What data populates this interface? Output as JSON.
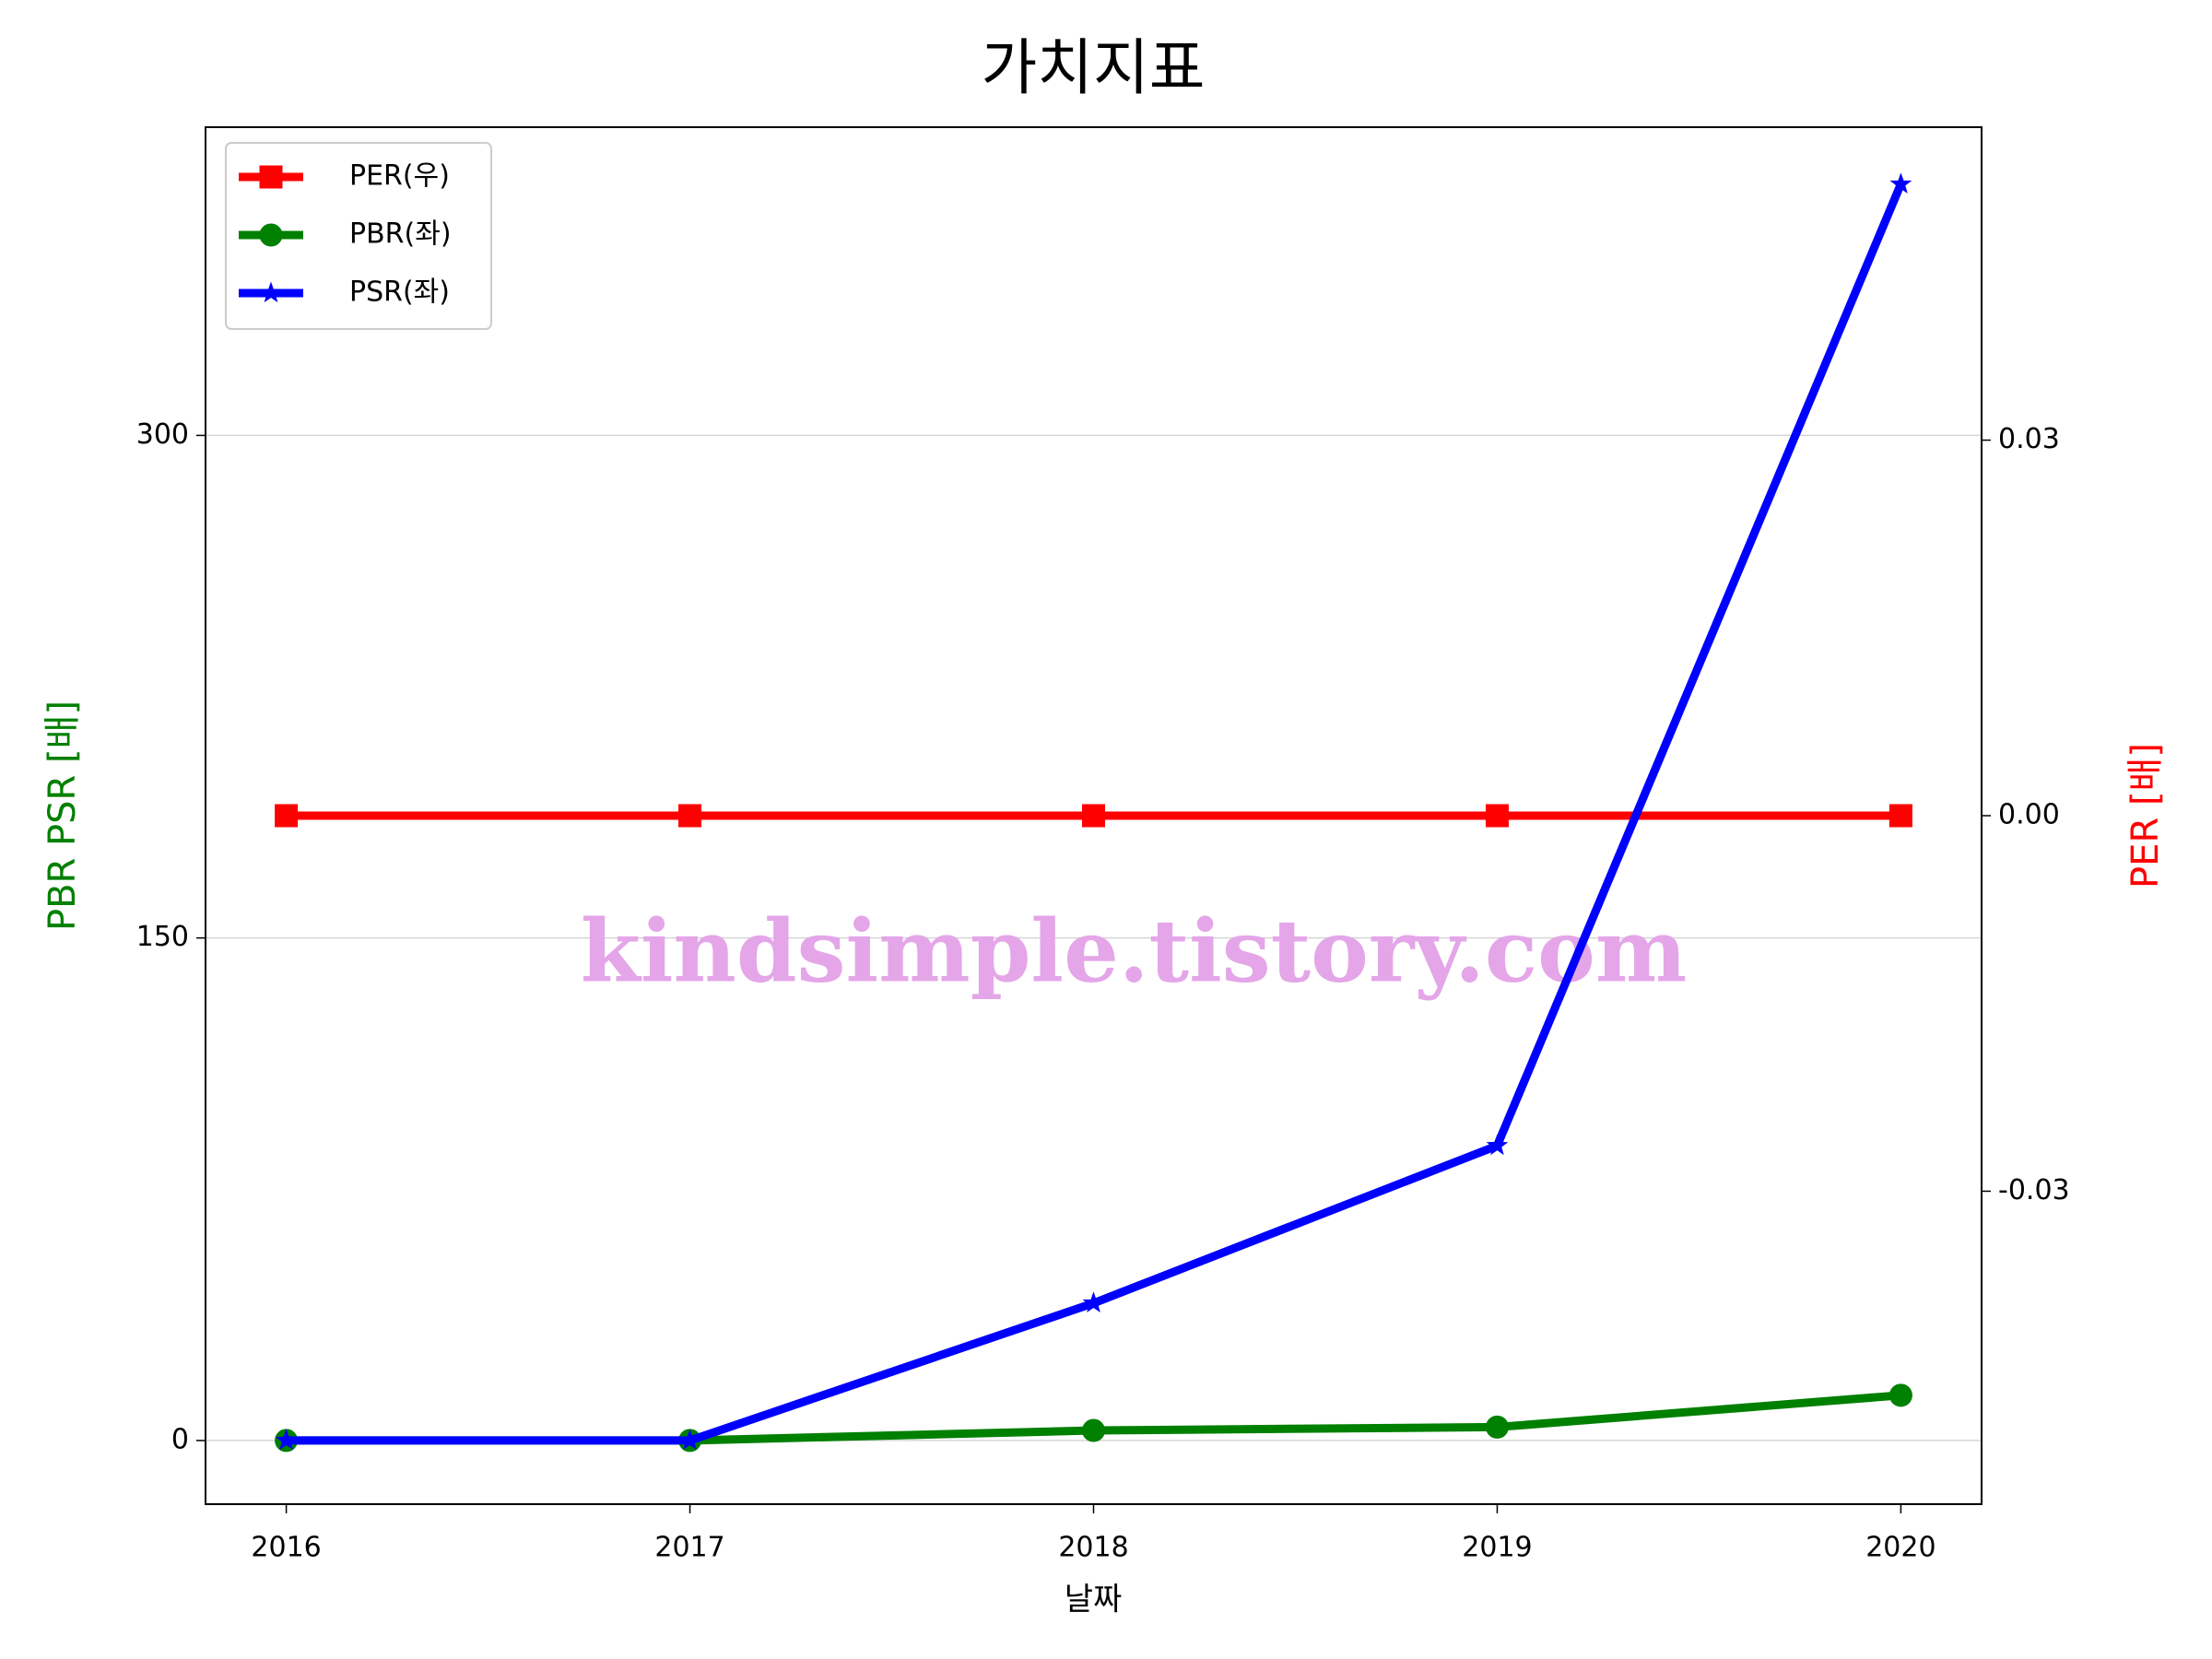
{
  "chart_data": {
    "type": "line",
    "title": "가치지표",
    "x": [
      2016,
      2017,
      2018,
      2019,
      2020
    ],
    "xlabel": "날짜",
    "ylabel": "PBR PSR [배]",
    "y2label": "PER [배]",
    "series": [
      {
        "name": "PER(우)",
        "color": "#ff0000",
        "marker": "square",
        "axis": "y2",
        "values": [
          0,
          0,
          0,
          0,
          0
        ]
      },
      {
        "name": "PBR(좌)",
        "color": "#008000",
        "marker": "circle",
        "values": [
          0,
          0,
          3,
          4,
          13.5
        ]
      },
      {
        "name": "PSR(좌)",
        "color": "#0000ff",
        "marker": "star",
        "values": [
          0,
          0,
          41,
          88,
          375
        ]
      }
    ],
    "xlim": [
      2015.8,
      2020.2
    ],
    "xticks": [
      2016,
      2017,
      2018,
      2019,
      2020
    ],
    "ylim": [
      -19,
      392
    ],
    "yticks": [
      0,
      150,
      300
    ],
    "y2lim": [
      -0.055,
      0.055
    ],
    "y2ticks": [
      -0.03,
      {
        "value": 0,
        "label": "0.00"
      },
      0.03
    ],
    "grid": true,
    "legend": "upper left",
    "annotation": "kindsimple.tistory.com"
  }
}
